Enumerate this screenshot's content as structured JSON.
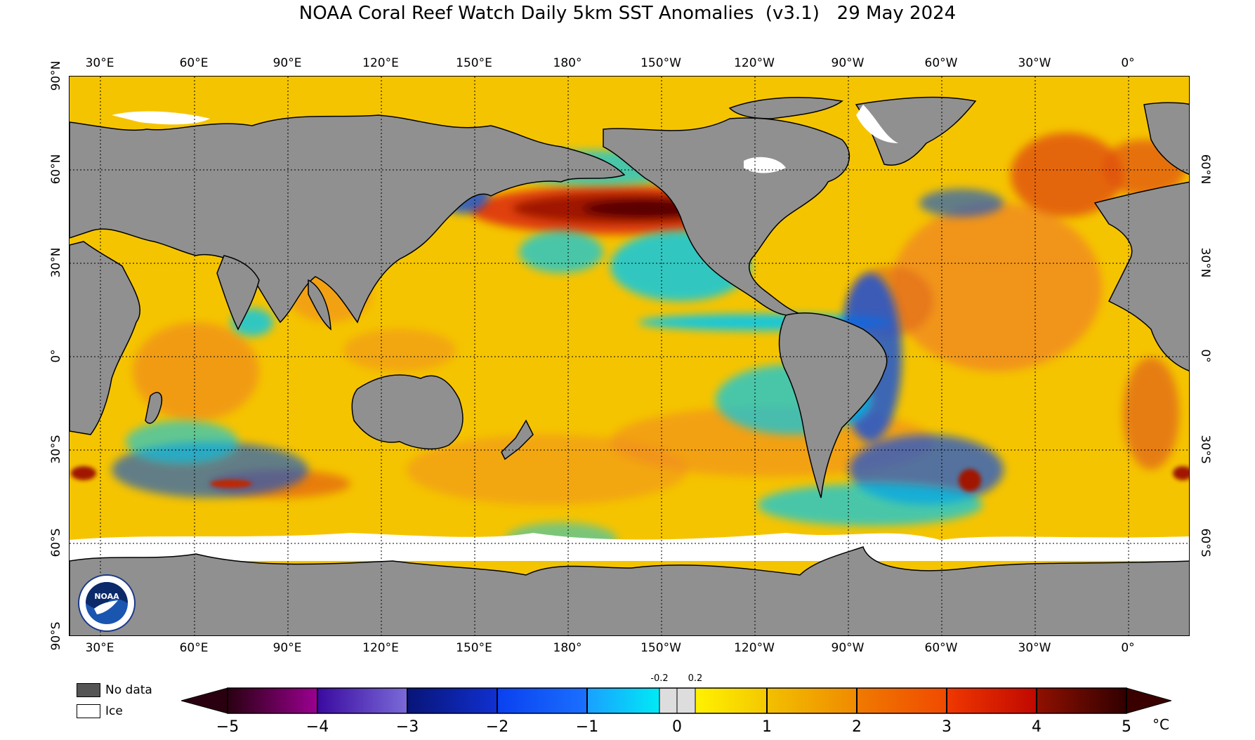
{
  "title": "NOAA Coral Reef Watch Daily 5km SST Anomalies  (v3.1)   29 May 2024",
  "lon_labels": [
    "30°E",
    "60°E",
    "90°E",
    "120°E",
    "150°E",
    "180°",
    "150°W",
    "120°W",
    "90°W",
    "60°W",
    "30°W",
    "0°"
  ],
  "lat_labels_left": [
    "90°N",
    "60°N",
    "30°N",
    "0°",
    "30°S",
    "60°S",
    "90°S"
  ],
  "lat_labels_right": [
    "60°N",
    "30°N",
    "0°",
    "30°S",
    "60°S"
  ],
  "legend": {
    "no_data": "No data",
    "ice": "Ice"
  },
  "colorbar": {
    "ticks": [
      "−5",
      "−4",
      "−3",
      "−2",
      "−1",
      "0",
      "1",
      "2",
      "3",
      "4",
      "5"
    ],
    "small_ticks": [
      "-0.2",
      "0.2"
    ],
    "unit": "°C",
    "colors": {
      "m5": "#2a0010",
      "m4": "#5a006a",
      "m3": "#6a5ad0",
      "m2": "#0a1aa0",
      "m1": "#0a5aff",
      "m02": "#00e0f0",
      "neutral": "#dddddd",
      "p02": "#fff000",
      "p1": "#f0b800",
      "p2": "#f07a00",
      "p3": "#e02800",
      "p4": "#900a00",
      "p5": "#3a0000"
    }
  },
  "map_colors": {
    "ocean_base": "#f5c400",
    "land": "#909090",
    "no_data": "#555555",
    "ice": "#ffffff",
    "warm": "#f08a20",
    "hot": "#c02800",
    "very_hot": "#6a0000",
    "cool": "#00c8f0",
    "cold": "#0a50e0",
    "neutral": "#dddddd"
  },
  "logo_text": "NOAA"
}
